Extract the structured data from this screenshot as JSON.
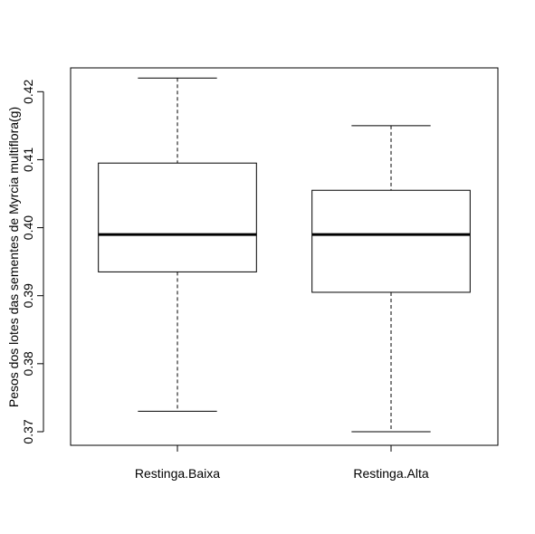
{
  "chart_data": {
    "type": "boxplot",
    "ylabel": "Pesos dos lotes das sementes de Myrcia multiflora(g)",
    "ylim": [
      0.368,
      0.4235
    ],
    "yticks": [
      0.37,
      0.38,
      0.39,
      0.4,
      0.41,
      0.42
    ],
    "ytick_labels": [
      "0.37",
      "0.38",
      "0.39",
      "0.40",
      "0.41",
      "0.42"
    ],
    "grid": false,
    "categories": [
      "Restinga.Baixa",
      "Restinga.Alta"
    ],
    "boxes": [
      {
        "min": 0.373,
        "q1": 0.3935,
        "median": 0.399,
        "q3": 0.4095,
        "max": 0.422
      },
      {
        "min": 0.37,
        "q1": 0.3905,
        "median": 0.399,
        "q3": 0.4055,
        "max": 0.415
      }
    ],
    "colors": {
      "stroke": "#000000",
      "box_fill": "#ffffff"
    }
  }
}
